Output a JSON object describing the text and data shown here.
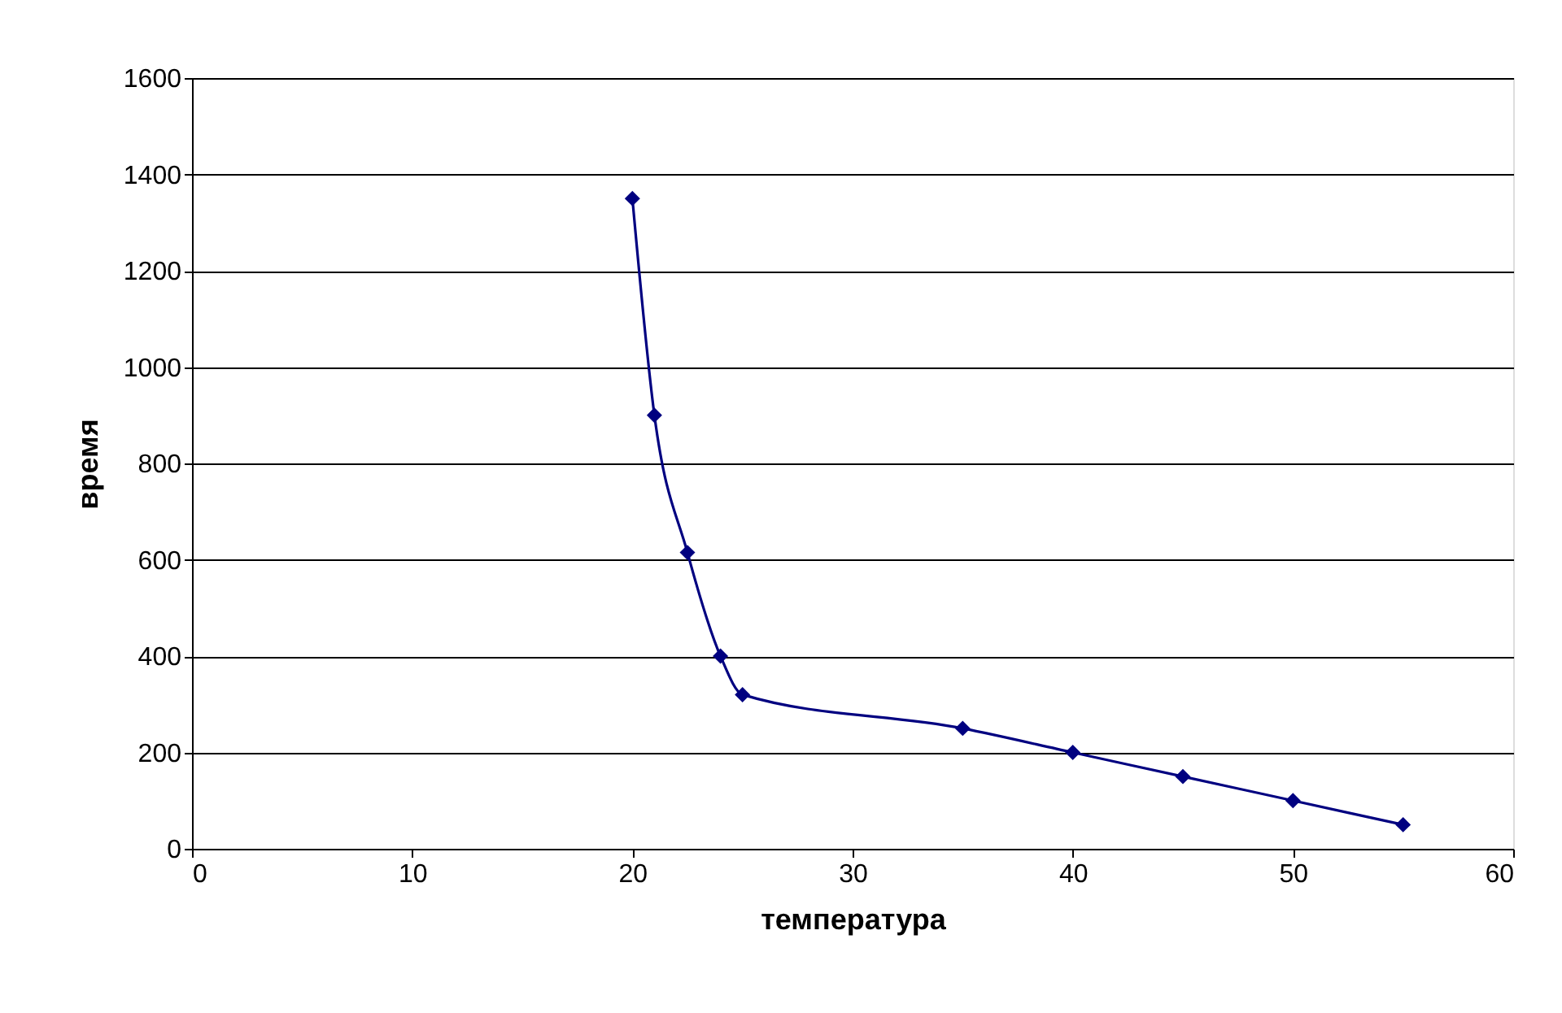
{
  "chart_data": {
    "type": "line",
    "xlabel": "температура",
    "ylabel": "время",
    "x": [
      20,
      21,
      22.5,
      24,
      25,
      35,
      40,
      45,
      50,
      55
    ],
    "series": [
      {
        "color": "#000080",
        "values": [
          1350,
          900,
          615,
          400,
          320,
          250,
          200,
          150,
          100,
          50
        ]
      }
    ],
    "xlim": [
      0,
      60
    ],
    "xticks": [
      0,
      10,
      20,
      30,
      40,
      50,
      60
    ],
    "ylim": [
      0,
      1600
    ],
    "yticks": [
      0,
      200,
      400,
      600,
      800,
      1000,
      1200,
      1400,
      1600
    ],
    "grid": "y",
    "marker": "diamond",
    "line_style": "solid"
  }
}
